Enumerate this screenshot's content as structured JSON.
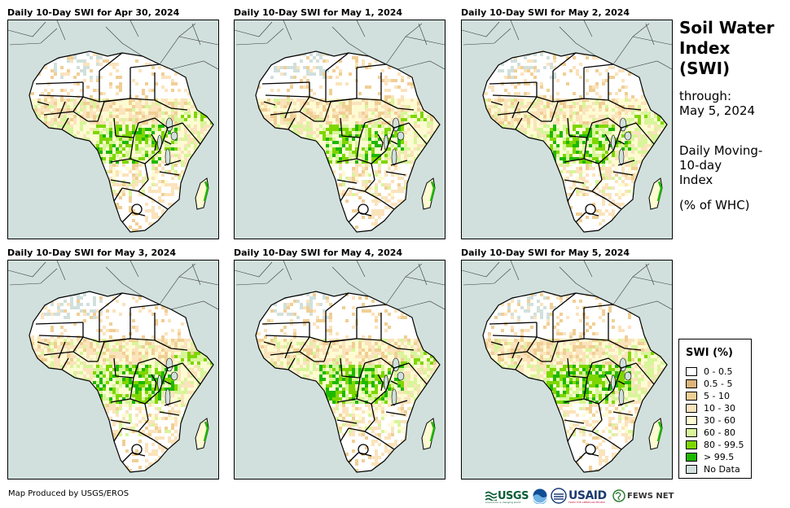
{
  "panels": [
    {
      "title": "Daily 10-Day SWI for Apr 30, 2024"
    },
    {
      "title": "Daily 10-Day SWI for May 1, 2024"
    },
    {
      "title": "Daily 10-Day SWI for May 2, 2024"
    },
    {
      "title": "Daily 10-Day SWI for May 3, 2024"
    },
    {
      "title": "Daily 10-Day SWI for May 4, 2024"
    },
    {
      "title": "Daily 10-Day SWI for May 5, 2024"
    }
  ],
  "side": {
    "title_line1": "Soil Water",
    "title_line2": "Index",
    "title_line3": "(SWI)",
    "through_label": "through:",
    "through_date": "May 5, 2024",
    "desc_line1": "Daily Moving-",
    "desc_line2": "10-day",
    "desc_line3": "Index",
    "units": "(% of WHC)"
  },
  "legend": {
    "title": "SWI (%)",
    "items": [
      {
        "label": "0 - 0.5",
        "color": "#ffffff"
      },
      {
        "label": "0.5 - 5",
        "color": "#dcb57a"
      },
      {
        "label": "5 - 10",
        "color": "#f0cf95"
      },
      {
        "label": "10 - 30",
        "color": "#fbe3bc"
      },
      {
        "label": "30 - 60",
        "color": "#fefbd2"
      },
      {
        "label": "60 - 80",
        "color": "#d8f59a"
      },
      {
        "label": "80 - 99.5",
        "color": "#7ed600"
      },
      {
        "label": "> 99.5",
        "color": "#1fb800"
      },
      {
        "label": "No Data",
        "color": "#d1e0dc"
      }
    ]
  },
  "footer": {
    "credit": "Map Produced by USGS/EROS",
    "logo_usgs": "USGS",
    "logo_usgs_tagline": "science for a changing world",
    "logo_usaid": "USAID",
    "logo_usaid_tagline": "FROM THE AMERICAN PEOPLE",
    "logo_fews": "FEWS NET"
  },
  "colors": {
    "no_data": "#d1e0dc",
    "land": "#ffffff",
    "border": "#000000",
    "neighbor_border": "#3a3a3a"
  }
}
